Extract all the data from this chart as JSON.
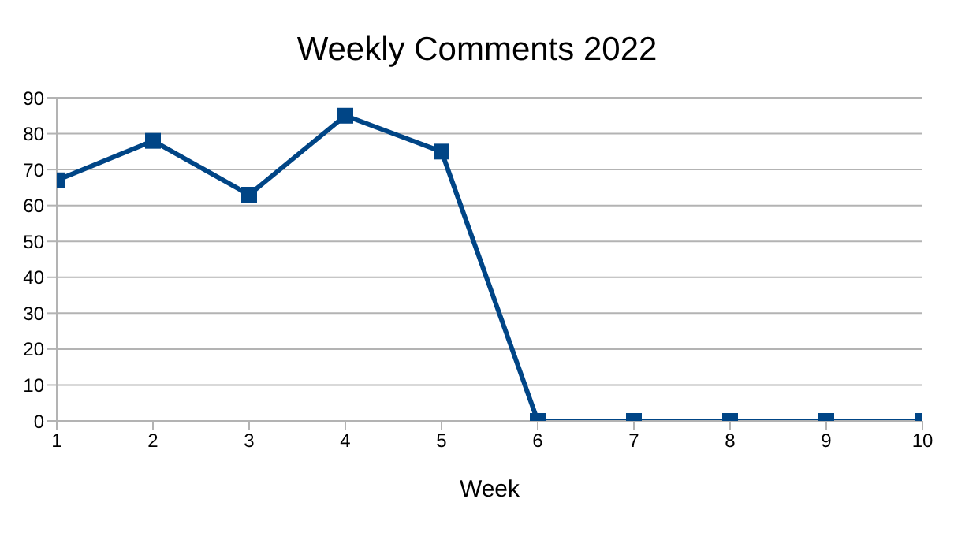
{
  "chart_data": {
    "type": "line",
    "title": "Weekly Comments 2022",
    "xlabel": "Week",
    "x": [
      1,
      2,
      3,
      4,
      5,
      6,
      7,
      8,
      9,
      10
    ],
    "series": [
      {
        "color": "#004586",
        "values": [
          67,
          78,
          63,
          85,
          75,
          0,
          0,
          0,
          0,
          0
        ]
      }
    ],
    "xlim": [
      1,
      10
    ],
    "xticks": [
      1,
      2,
      3,
      4,
      5,
      6,
      7,
      8,
      9,
      10
    ],
    "ylim": [
      0,
      90
    ],
    "yticks": [
      0,
      10,
      20,
      30,
      40,
      50,
      60,
      70,
      80,
      90
    ],
    "grid": "y",
    "legend": false,
    "marker": "square",
    "line_style": "solid"
  }
}
